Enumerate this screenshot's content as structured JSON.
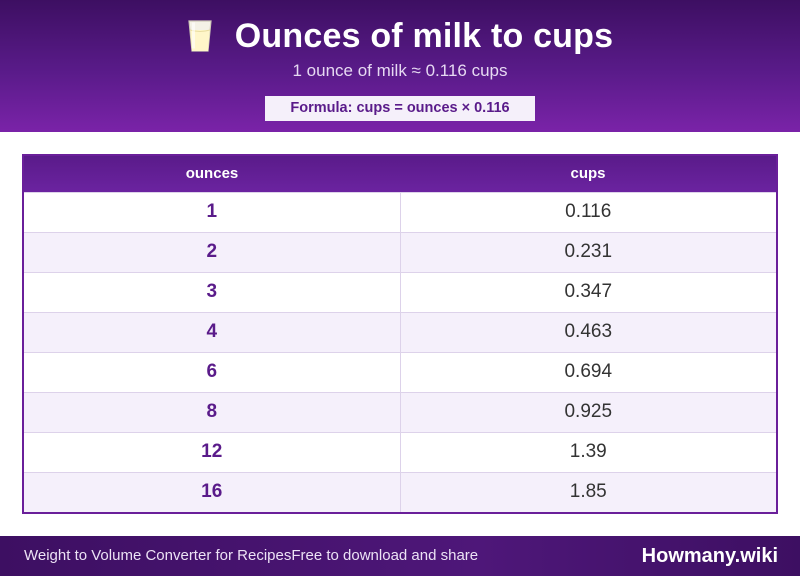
{
  "header": {
    "icon": "milk-glass-icon",
    "title": "Ounces of milk to cups",
    "subtitle": "1 ounce of milk ≈ 0.116 cups",
    "formula": "Formula: cups = ounces × 0.116"
  },
  "table": {
    "headers": [
      "ounces",
      "cups"
    ],
    "rows": [
      [
        "1",
        "0.116"
      ],
      [
        "2",
        "0.231"
      ],
      [
        "3",
        "0.347"
      ],
      [
        "4",
        "0.463"
      ],
      [
        "6",
        "0.694"
      ],
      [
        "8",
        "0.925"
      ],
      [
        "12",
        "1.39"
      ],
      [
        "16",
        "1.85"
      ]
    ]
  },
  "footer": {
    "left_text": "Weight to Volume Converter for RecipesFree to download and share",
    "brand": "Howmany.wiki"
  },
  "colors": {
    "primary": "#5a1b8a",
    "accent_light": "#f5f0fa"
  }
}
